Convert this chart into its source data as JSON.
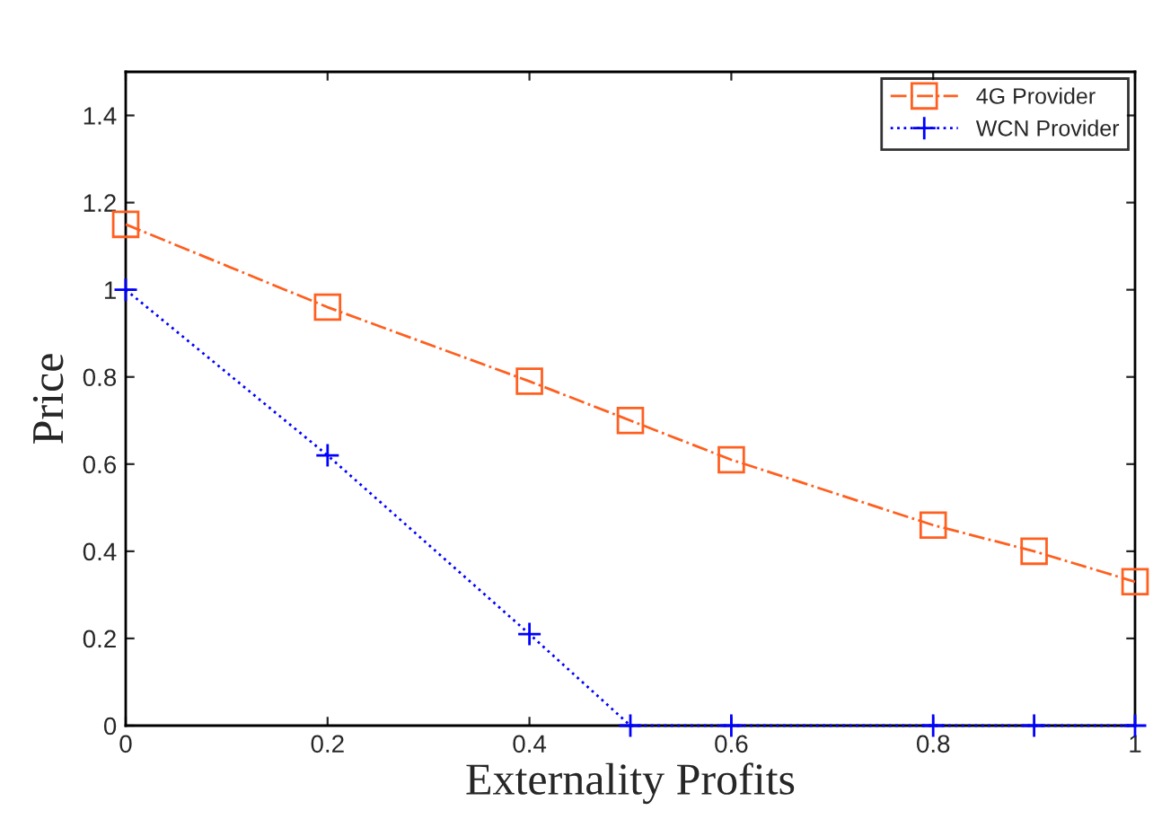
{
  "chart_data": {
    "type": "line",
    "xlabel": "Externality Profits",
    "ylabel": "Price",
    "x": [
      0,
      0.2,
      0.4,
      0.5,
      0.6,
      0.8,
      0.9,
      1
    ],
    "series": [
      {
        "name": "4G Provider",
        "color": "#ff5f1f",
        "marker": "square",
        "line_style": "dashdot",
        "values": [
          1.15,
          0.96,
          0.79,
          0.7,
          0.61,
          0.46,
          0.4,
          0.33
        ]
      },
      {
        "name": "WCN Provider",
        "color": "#0000ff",
        "marker": "cross",
        "line_style": "dotted",
        "values": [
          1.0,
          0.62,
          0.21,
          0,
          0,
          0,
          0,
          0
        ]
      }
    ],
    "xlim": [
      0,
      1
    ],
    "ylim": [
      0,
      1.5
    ],
    "xticks": [
      0,
      0.2,
      0.4,
      0.6,
      0.8,
      1
    ],
    "yticks": [
      0,
      0.2,
      0.4,
      0.6,
      0.8,
      1,
      1.2,
      1.4
    ],
    "grid": false,
    "legend": "top right"
  }
}
